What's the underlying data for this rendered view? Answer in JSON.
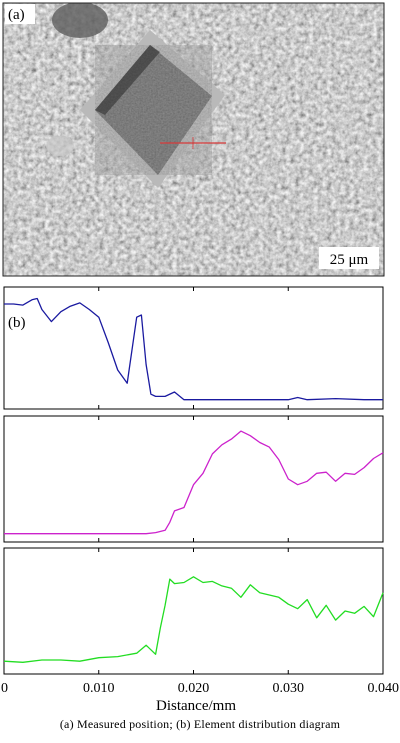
{
  "panel_a": {
    "label": "(a)",
    "scale_bar": "25 μm"
  },
  "panel_b": {
    "label": "(b)"
  },
  "caption": "(a) Measured position; (b) Element distribution diagram",
  "colors": {
    "series_1": "#1a1aa0",
    "series_2": "#cc22cc",
    "series_3": "#22dd22",
    "marker_line": "#d83a3a"
  },
  "chart_data": {
    "type": "line",
    "xlabel": "Distance/mm",
    "xlim": [
      0,
      0.04
    ],
    "xticks": [
      "0",
      "0.010",
      "0.020",
      "0.030",
      "0.040"
    ],
    "tick_values": [
      0,
      0.01,
      0.02,
      0.03,
      0.04
    ],
    "series": [
      {
        "x": [
          0,
          0.001,
          0.002,
          0.003,
          0.0035,
          0.004,
          0.005,
          0.006,
          0.007,
          0.008,
          0.009,
          0.01,
          0.011,
          0.012,
          0.013,
          0.014,
          0.0145,
          0.015,
          0.0155,
          0.016,
          0.017,
          0.018,
          0.019,
          0.02,
          0.025,
          0.03,
          0.031,
          0.032,
          0.035,
          0.038,
          0.04
        ],
        "values": [
          0.9,
          0.9,
          0.89,
          0.94,
          0.95,
          0.85,
          0.74,
          0.83,
          0.88,
          0.91,
          0.85,
          0.78,
          0.55,
          0.3,
          0.18,
          0.78,
          0.8,
          0.35,
          0.08,
          0.06,
          0.06,
          0.1,
          0.03,
          0.03,
          0.03,
          0.03,
          0.05,
          0.03,
          0.04,
          0.03,
          0.03
        ]
      },
      {
        "x": [
          0,
          0.005,
          0.01,
          0.015,
          0.016,
          0.017,
          0.0175,
          0.018,
          0.019,
          0.02,
          0.021,
          0.022,
          0.023,
          0.024,
          0.025,
          0.026,
          0.027,
          0.028,
          0.029,
          0.03,
          0.031,
          0.032,
          0.033,
          0.034,
          0.035,
          0.036,
          0.037,
          0.038,
          0.039,
          0.04
        ],
        "values": [
          0.02,
          0.02,
          0.02,
          0.02,
          0.03,
          0.05,
          0.12,
          0.22,
          0.25,
          0.45,
          0.55,
          0.72,
          0.8,
          0.85,
          0.92,
          0.88,
          0.82,
          0.78,
          0.67,
          0.5,
          0.45,
          0.48,
          0.55,
          0.56,
          0.48,
          0.55,
          0.54,
          0.6,
          0.68,
          0.73
        ]
      },
      {
        "x": [
          0,
          0.002,
          0.004,
          0.006,
          0.008,
          0.01,
          0.012,
          0.014,
          0.015,
          0.016,
          0.0165,
          0.017,
          0.0175,
          0.018,
          0.019,
          0.02,
          0.021,
          0.022,
          0.023,
          0.024,
          0.025,
          0.026,
          0.027,
          0.028,
          0.029,
          0.03,
          0.031,
          0.032,
          0.033,
          0.034,
          0.035,
          0.036,
          0.037,
          0.038,
          0.039,
          0.04
        ],
        "values": [
          0.06,
          0.05,
          0.07,
          0.07,
          0.06,
          0.09,
          0.1,
          0.13,
          0.2,
          0.12,
          0.35,
          0.55,
          0.78,
          0.74,
          0.75,
          0.8,
          0.75,
          0.76,
          0.72,
          0.7,
          0.62,
          0.73,
          0.66,
          0.64,
          0.62,
          0.56,
          0.52,
          0.6,
          0.44,
          0.55,
          0.42,
          0.5,
          0.48,
          0.54,
          0.45,
          0.66
        ]
      }
    ]
  }
}
